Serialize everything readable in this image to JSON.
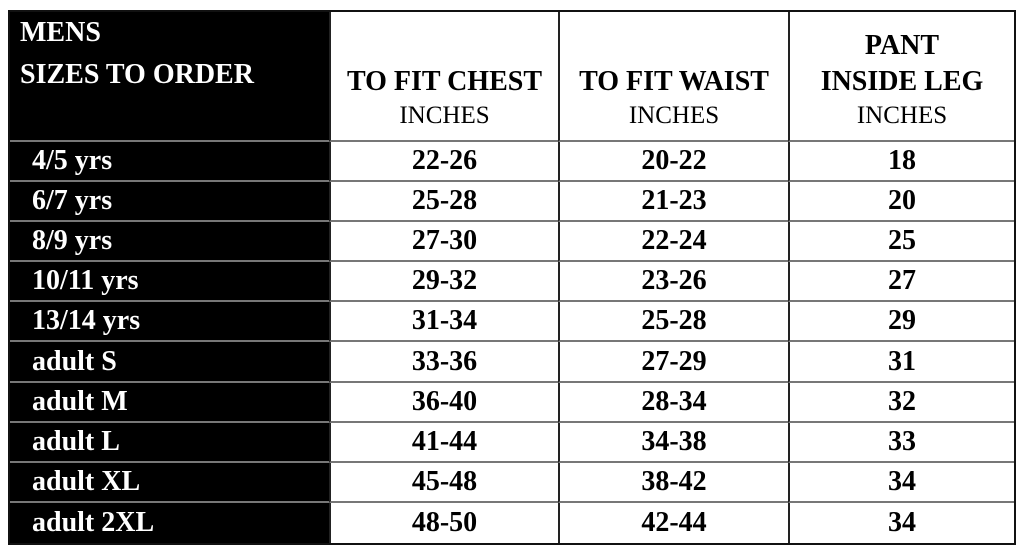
{
  "header": {
    "size_title_line1": "MENS",
    "size_title_line2": "SIZES TO ORDER",
    "chest_title": "TO FIT CHEST",
    "chest_unit": "INCHES",
    "waist_title": "TO FIT WAIST",
    "waist_unit": "INCHES",
    "leg_title_line1": "PANT",
    "leg_title_line2": "INSIDE LEG",
    "leg_unit": "INCHES"
  },
  "rows": [
    {
      "size": "4/5 yrs",
      "chest": "22-26",
      "waist": "20-22",
      "leg": "18"
    },
    {
      "size": "6/7 yrs",
      "chest": "25-28",
      "waist": "21-23",
      "leg": "20"
    },
    {
      "size": "8/9 yrs",
      "chest": "27-30",
      "waist": "22-24",
      "leg": "25"
    },
    {
      "size": "10/11 yrs",
      "chest": "29-32",
      "waist": "23-26",
      "leg": "27"
    },
    {
      "size": "13/14 yrs",
      "chest": "31-34",
      "waist": "25-28",
      "leg": "29"
    },
    {
      "size": "adult S",
      "chest": "33-36",
      "waist": "27-29",
      "leg": "31"
    },
    {
      "size": "adult M",
      "chest": "36-40",
      "waist": "28-34",
      "leg": "32"
    },
    {
      "size": "adult L",
      "chest": "41-44",
      "waist": "34-38",
      "leg": "33"
    },
    {
      "size": "adult XL",
      "chest": "45-48",
      "waist": "38-42",
      "leg": "34"
    },
    {
      "size": "adult 2XL",
      "chest": "48-50",
      "waist": "42-44",
      "leg": "34"
    }
  ]
}
